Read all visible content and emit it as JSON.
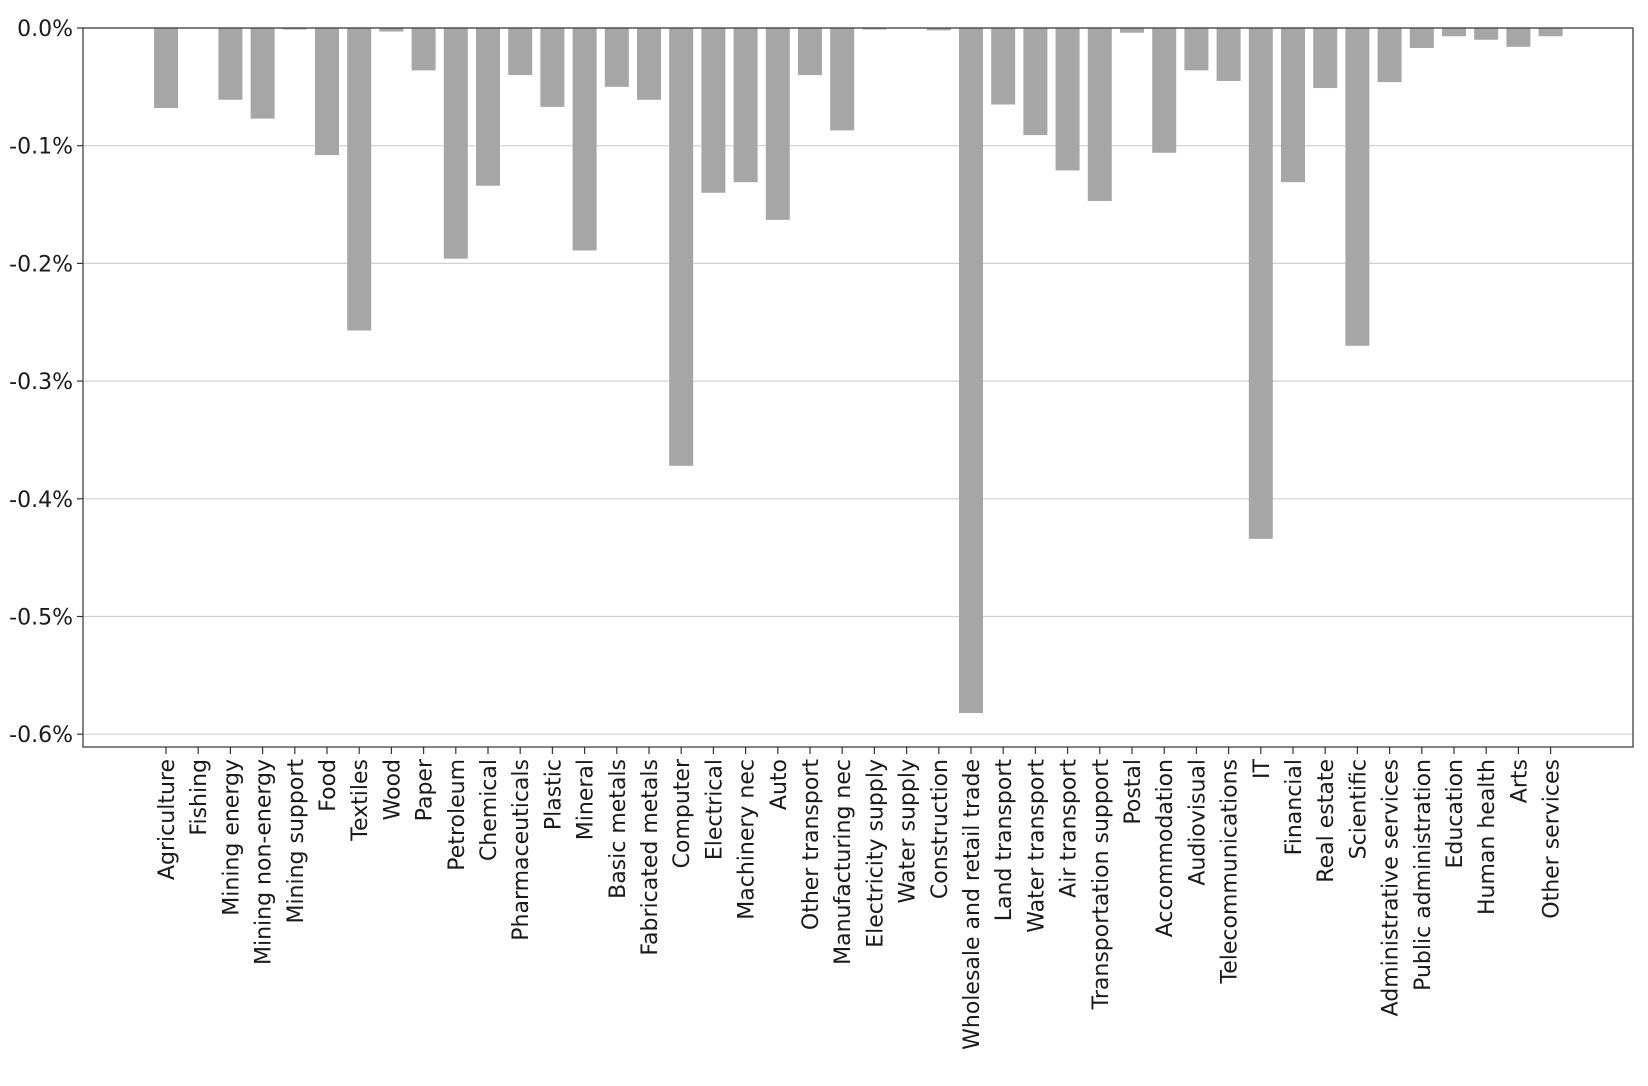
{
  "chart_data": {
    "type": "bar",
    "title": "",
    "xlabel": "",
    "ylabel": "",
    "ylim": [
      -0.61,
      0.0
    ],
    "yticks": [
      0.0,
      -0.1,
      -0.2,
      -0.3,
      -0.4,
      -0.5,
      -0.6
    ],
    "ytick_labels": [
      "0.0%",
      "-0.1%",
      "-0.2%",
      "-0.3%",
      "-0.4%",
      "-0.5%",
      "-0.6%"
    ],
    "grid": "horizontal",
    "bar_color": "#a6a6a6",
    "categories": [
      "Agriculture",
      "Fishing",
      "Mining energy",
      "Mining non-energy",
      "Mining support",
      "Food",
      "Textiles",
      "Wood",
      "Paper",
      "Petroleum",
      "Chemical",
      "Pharmaceuticals",
      "Plastic",
      "Mineral",
      "Basic metals",
      "Fabricated metals",
      "Computer",
      "Electrical",
      "Machinery nec",
      "Auto",
      "Other transport",
      "Manufacturing nec",
      "Electricity supply",
      "Water supply",
      "Construction",
      "Wholesale and retail trade",
      "Land transport",
      "Water transport",
      "Air transport",
      "Transportation support",
      "Postal",
      "Accommodation",
      "Audiovisual",
      "Telecommunications",
      "IT",
      "Financial",
      "Real estate",
      "Scientific",
      "Administrative services",
      "Public administration",
      "Education",
      "Human health",
      "Arts",
      "Other services"
    ],
    "values": [
      -0.068,
      0.0,
      -0.061,
      -0.077,
      -0.001,
      -0.108,
      -0.257,
      -0.003,
      -0.036,
      -0.196,
      -0.134,
      -0.04,
      -0.067,
      -0.189,
      -0.05,
      -0.061,
      -0.372,
      -0.14,
      -0.131,
      -0.163,
      -0.04,
      -0.087,
      -0.001,
      0.0,
      -0.002,
      -0.582,
      -0.065,
      -0.091,
      -0.121,
      -0.147,
      -0.004,
      -0.106,
      -0.036,
      -0.045,
      -0.434,
      -0.131,
      -0.051,
      -0.27,
      -0.046,
      -0.017,
      -0.007,
      -0.01,
      -0.016,
      -0.007
    ]
  }
}
